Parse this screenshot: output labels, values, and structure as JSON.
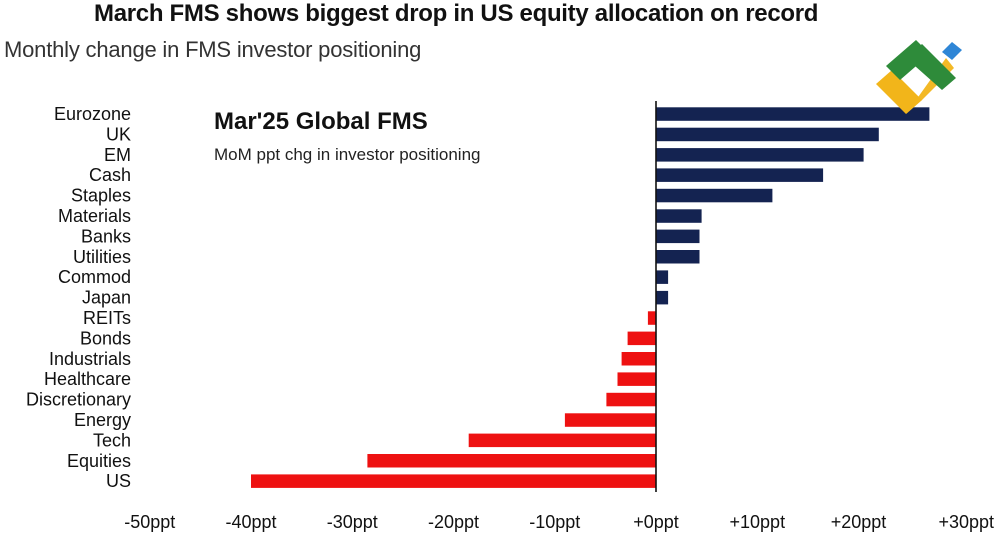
{
  "headline": "March FMS shows biggest drop in US equity allocation on record",
  "subheadline": "Monthly change in FMS investor positioning",
  "chart_data": {
    "type": "bar",
    "orientation": "horizontal",
    "title": "Mar'25 Global FMS",
    "subtitle": "MoM ppt chg in investor positioning",
    "categories": [
      "Eurozone",
      "UK",
      "EM",
      "Cash",
      "Staples",
      "Materials",
      "Banks",
      "Utilities",
      "Commod",
      "Japan",
      "REITs",
      "Bonds",
      "Industrials",
      "Healthcare",
      "Discretionary",
      "Energy",
      "Tech",
      "Equities",
      "US"
    ],
    "values": [
      27,
      22,
      20.5,
      16.5,
      11.5,
      4.5,
      4.3,
      4.3,
      1.2,
      1.2,
      -0.8,
      -2.8,
      -3.4,
      -3.8,
      -4.9,
      -9,
      -18.5,
      -28.5,
      -40
    ],
    "xlim": [
      -50,
      30
    ],
    "ticks": [
      -50,
      -40,
      -30,
      -20,
      -10,
      0,
      10,
      20,
      30
    ],
    "tick_labels": [
      "-50ppt",
      "-40ppt",
      "-30ppt",
      "-20ppt",
      "-10ppt",
      "+0ppt",
      "+10ppt",
      "+20ppt",
      "+30ppt"
    ],
    "colors": {
      "positive": "#142351",
      "negative": "#ee1111",
      "axis": "#111111"
    },
    "grid": false,
    "legend": "none"
  },
  "logo": {
    "name": "logo-mark",
    "colors": [
      "#2e8b3a",
      "#2f86d6",
      "#f2b51a"
    ]
  }
}
